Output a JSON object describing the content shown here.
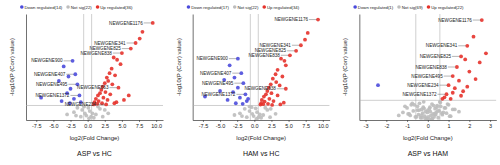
{
  "chart_data": [
    {
      "type": "scatter",
      "title": "ASP vs HC",
      "x_label": "log2(Fold Change)",
      "y_label": "-log10(P (Corr) value)",
      "xlim": [
        -9,
        11
      ],
      "ylim": [
        0,
        9.5
      ],
      "xticks": [
        -7.5,
        {
          "value": -5.0,
          "label": "-5.0"
        },
        -2.5,
        {
          "value": 0.0,
          "label": "0.0"
        },
        2.5,
        {
          "value": 5.0,
          "label": "5.0"
        },
        7.5,
        {
          "value": 10.0,
          "label": "10.0"
        }
      ],
      "tick_labels": "x",
      "legend": "top",
      "reference_lines": {
        "x": [
          -0.58,
          0.58
        ],
        "y": 1.3
      },
      "series": [
        {
          "name": "Down regulated(14)",
          "color": "#4b4bdc",
          "marker": "circle",
          "x": [
            -2.2,
            -3.5,
            -1.8,
            -2.8,
            -4.2,
            -1.5,
            -2.5,
            -3.0,
            -1.2,
            -6.8,
            -2.0,
            -3.8,
            -1.0,
            -2.6
          ],
          "values": [
            5.3,
            4.8,
            4.1,
            3.9,
            3.5,
            3.2,
            2.8,
            2.4,
            2.2,
            2.0,
            1.9,
            1.7,
            1.6,
            1.5
          ]
        },
        {
          "name": "Not sig(22)",
          "color": "#bdbdbd",
          "marker": "circle",
          "x": [
            -1.5,
            -0.8,
            -0.5,
            0.3,
            0.7,
            1.2,
            -2.0,
            2.5,
            -0.2,
            0.5,
            1.8,
            -1.0,
            0.1,
            3.0,
            -3.0,
            0.9,
            -0.4,
            1.5,
            -1.7,
            0.2,
            2.2,
            -0.6
          ],
          "values": [
            1.1,
            0.9,
            1.2,
            0.8,
            0.6,
            0.5,
            0.7,
            0.9,
            0.4,
            0.3,
            1.0,
            0.3,
            1.1,
            0.6,
            0.5,
            0.2,
            0.6,
            1.2,
            0.4,
            0.15,
            0.3,
            1.25
          ]
        },
        {
          "name": "Up regulated(36)",
          "color": "#e5322b",
          "marker": "circle",
          "x": [
            9.5,
            8.0,
            7.6,
            7.0,
            6.3,
            5.0,
            4.3,
            3.8,
            4.8,
            3.5,
            3.2,
            4.0,
            2.8,
            3.0,
            2.5,
            3.6,
            2.2,
            2.0,
            4.5,
            2.6,
            1.8,
            1.5,
            3.3,
            2.3,
            1.2,
            2.9,
            1.6,
            4.2,
            1.0,
            2.1,
            3.9,
            1.4,
            0.9,
            2.7,
            5.3,
            6.0
          ],
          "values": [
            8.7,
            7.9,
            7.3,
            6.9,
            6.4,
            6.0,
            5.4,
            5.6,
            5.0,
            4.6,
            4.2,
            4.0,
            3.8,
            3.5,
            3.3,
            3.2,
            3.0,
            2.7,
            2.9,
            2.5,
            2.4,
            2.2,
            2.3,
            2.0,
            1.9,
            1.8,
            1.7,
            1.6,
            1.6,
            1.5,
            1.5,
            1.45,
            1.4,
            1.4,
            1.8,
            2.2
          ]
        }
      ],
      "annotations": [
        {
          "label": "NEWGENE1176",
          "x": 9.5,
          "y": 8.7
        },
        {
          "label": "NEWGENE341",
          "x": 7.0,
          "y": 6.9
        },
        {
          "label": "NEWGENE825",
          "x": 6.3,
          "y": 6.4
        },
        {
          "label": "NEWGENE838",
          "x": 5.0,
          "y": 6.0
        },
        {
          "label": "NEWGENE900",
          "x": -2.2,
          "y": 5.3
        },
        {
          "label": "NEWGENE407",
          "x": -1.8,
          "y": 4.1
        },
        {
          "label": "NEWGENE495",
          "x": -1.5,
          "y": 3.2
        },
        {
          "label": "NEWGENE663",
          "x": 4.5,
          "y": 2.9
        },
        {
          "label": "NEWGENE1372",
          "x": -1.2,
          "y": 2.2
        },
        {
          "label": "NEWGENE234",
          "x": 2.7,
          "y": 1.4
        }
      ]
    },
    {
      "type": "scatter",
      "title": "HAM vs HC",
      "x_label": "log2(Fold Change)",
      "y_label": "-log10(P (Corr) value)",
      "xlim": [
        -9,
        11
      ],
      "ylim": [
        0,
        9.5
      ],
      "xticks": [
        -7.5,
        {
          "value": -5.0,
          "label": "-5.0"
        },
        -2.5,
        {
          "value": 0.0,
          "label": "0.0"
        },
        2.5,
        {
          "value": 5.0,
          "label": "5.0"
        },
        7.5,
        {
          "value": 10.0,
          "label": "10.0"
        }
      ],
      "tick_labels": "x",
      "legend": "top",
      "reference_lines": {
        "x": [
          -0.58,
          0.58
        ],
        "y": 1.3
      },
      "series": [
        {
          "name": "Down regulated(17)",
          "color": "#4b4bdc",
          "marker": "circle",
          "x": [
            -2.4,
            -3.6,
            -1.9,
            -2.9,
            -4.4,
            -1.6,
            -2.4,
            -3.1,
            -1.3,
            -7.2,
            -2.1,
            -3.9,
            -1.1,
            -2.7,
            -5.0,
            -1.7,
            -0.9
          ],
          "values": [
            5.5,
            4.9,
            4.2,
            3.8,
            3.6,
            3.3,
            2.9,
            2.5,
            2.3,
            2.1,
            2.0,
            1.8,
            1.7,
            1.5,
            2.6,
            1.45,
            1.9
          ]
        },
        {
          "name": "Not sig(22)",
          "color": "#bdbdbd",
          "marker": "circle",
          "x": [
            -1.4,
            -0.7,
            -0.4,
            0.4,
            0.8,
            1.3,
            -2.1,
            2.4,
            -0.1,
            0.6,
            1.9,
            -1.1,
            0.2,
            3.1,
            -2.9,
            1.0,
            -0.3,
            1.6,
            -1.8,
            0.3,
            2.3,
            -0.7
          ],
          "values": [
            1.0,
            0.8,
            1.15,
            0.7,
            0.5,
            0.45,
            0.6,
            1.0,
            0.35,
            0.25,
            0.9,
            0.25,
            1.05,
            0.55,
            0.45,
            0.2,
            0.55,
            1.1,
            0.35,
            0.1,
            0.25,
            1.2
          ]
        },
        {
          "name": "Up regulated(34)",
          "color": "#e5322b",
          "marker": "circle",
          "x": [
            9.3,
            7.8,
            7.4,
            6.8,
            6.1,
            5.2,
            4.4,
            3.9,
            4.6,
            3.4,
            3.1,
            4.1,
            2.7,
            3.2,
            2.4,
            3.7,
            2.1,
            1.9,
            4.6,
            2.5,
            1.7,
            1.4,
            3.4,
            2.2,
            1.1,
            2.8,
            1.5,
            4.3,
            1.0,
            2.0,
            3.8,
            1.3,
            0.9,
            2.6
          ],
          "values": [
            9.0,
            7.8,
            7.2,
            6.7,
            6.2,
            5.8,
            5.3,
            5.5,
            4.9,
            4.5,
            4.1,
            3.9,
            3.7,
            3.4,
            3.2,
            3.1,
            2.9,
            2.6,
            2.8,
            2.4,
            2.3,
            2.1,
            2.2,
            1.9,
            1.8,
            1.7,
            1.65,
            1.55,
            1.5,
            1.45,
            1.4,
            1.42,
            1.38,
            1.35
          ]
        }
      ],
      "annotations": [
        {
          "label": "NEWGENE1176",
          "x": 9.3,
          "y": 9.0
        },
        {
          "label": "NEWGENE341",
          "x": 6.8,
          "y": 6.7
        },
        {
          "label": "NEWGENE825",
          "x": 6.1,
          "y": 6.2
        },
        {
          "label": "NEWGENE838",
          "x": 5.2,
          "y": 5.8
        },
        {
          "label": "NEWGENE900",
          "x": -2.4,
          "y": 5.5
        },
        {
          "label": "NEWGENE407",
          "x": -1.9,
          "y": 4.2
        },
        {
          "label": "NEWGENE495",
          "x": -1.6,
          "y": 3.3
        },
        {
          "label": "NEWGENE638",
          "x": 4.6,
          "y": 2.8
        },
        {
          "label": "NEWGENE1372",
          "x": -1.3,
          "y": 2.3
        }
      ]
    },
    {
      "type": "scatter",
      "title": "ASP vs HAM",
      "x_label": "log2(Fold Change)",
      "y_label": "-log10(P (Corr) value)",
      "xlim": [
        -3.3,
        3.3
      ],
      "ylim": [
        0,
        7
      ],
      "xticks": [
        -3,
        -2,
        -1,
        0,
        1,
        2,
        3
      ],
      "tick_labels": "x",
      "legend": "top",
      "reference_lines": {
        "x": [
          -0.58,
          0.58
        ],
        "y": 1.3
      },
      "series": [
        {
          "name": "Down regulated(1)",
          "color": "#4b4bdc",
          "marker": "circle",
          "x": [
            -2.4
          ],
          "values": [
            2.3
          ]
        },
        {
          "name": "Not sig(69)",
          "color": "#bdbdbd",
          "marker": "circle",
          "x": [
            -1.4,
            -1.2,
            -1.0,
            -0.9,
            -0.8,
            -0.7,
            -0.6,
            -0.5,
            -0.45,
            -0.4,
            -0.35,
            -0.3,
            -0.25,
            -0.2,
            -0.15,
            -0.1,
            -0.05,
            0.0,
            0.05,
            0.1,
            0.15,
            0.2,
            0.25,
            0.3,
            0.35,
            0.4,
            0.45,
            0.5,
            0.55,
            0.6,
            0.7,
            0.8,
            0.9,
            1.0,
            1.1,
            1.3,
            1.5,
            -1.1,
            -0.95,
            -0.75,
            -0.55,
            -0.42,
            -0.32,
            -0.22,
            -0.12,
            -0.02,
            0.08,
            0.18,
            0.28,
            0.38,
            0.48,
            0.58,
            0.68,
            0.85,
            1.05,
            1.2,
            -0.65,
            -0.28,
            0.12,
            0.33,
            0.62,
            -0.85,
            -0.5,
            0.02,
            0.44,
            0.75,
            -0.18,
            0.22,
            0.95
          ],
          "values": [
            0.3,
            0.5,
            0.8,
            0.4,
            1.0,
            0.6,
            0.2,
            0.9,
            0.35,
            1.1,
            0.15,
            0.7,
            0.45,
            1.2,
            0.25,
            0.55,
            0.1,
            0.65,
            0.05,
            0.85,
            0.3,
            1.05,
            0.4,
            0.2,
            0.75,
            0.5,
            0.95,
            0.15,
            0.6,
            1.15,
            0.35,
            0.8,
            0.45,
            1.0,
            0.25,
            0.7,
            0.55,
            0.9,
            0.4,
            1.1,
            0.2,
            0.65,
            0.3,
            0.85,
            0.1,
            0.5,
            0.75,
            0.05,
            0.95,
            0.35,
            0.6,
            1.2,
            0.45,
            0.8,
            0.25,
            0.7,
            1.0,
            0.15,
            0.55,
            0.4,
            0.9,
            0.3,
            0.65,
            0.2,
            0.85,
            0.5,
            0.75,
            0.1,
            1.05
          ]
        },
        {
          "name": "Up regulated(22)",
          "color": "#e5322b",
          "marker": "circle",
          "x": [
            2.6,
            1.9,
            1.6,
            1.4,
            1.2,
            1.0,
            0.9,
            2.2,
            1.8,
            2.0,
            1.5,
            1.3,
            1.7,
            2.3,
            0.8,
            1.1,
            2.5,
            1.6,
            0.7,
            1.9,
            1.2,
            2.8
          ],
          "values": [
            6.6,
            4.9,
            4.2,
            3.5,
            2.9,
            2.3,
            1.7,
            5.5,
            4.0,
            3.2,
            2.6,
            2.1,
            1.9,
            2.7,
            1.5,
            1.4,
            3.8,
            1.6,
            1.4,
            2.2,
            1.8,
            4.4
          ]
        }
      ],
      "annotations": [
        {
          "label": "NEWGENE1176",
          "x": 2.6,
          "y": 6.6
        },
        {
          "label": "NEWGENE341",
          "x": 1.9,
          "y": 4.9
        },
        {
          "label": "NEWGENE825",
          "x": 1.6,
          "y": 4.2
        },
        {
          "label": "NEWGENE838",
          "x": 1.4,
          "y": 3.5
        },
        {
          "label": "NEWGENE495",
          "x": 1.2,
          "y": 2.9
        },
        {
          "label": "NEWGENE234",
          "x": 1.0,
          "y": 2.3
        },
        {
          "label": "NEWGENE1372",
          "x": 0.9,
          "y": 1.7
        }
      ]
    }
  ]
}
